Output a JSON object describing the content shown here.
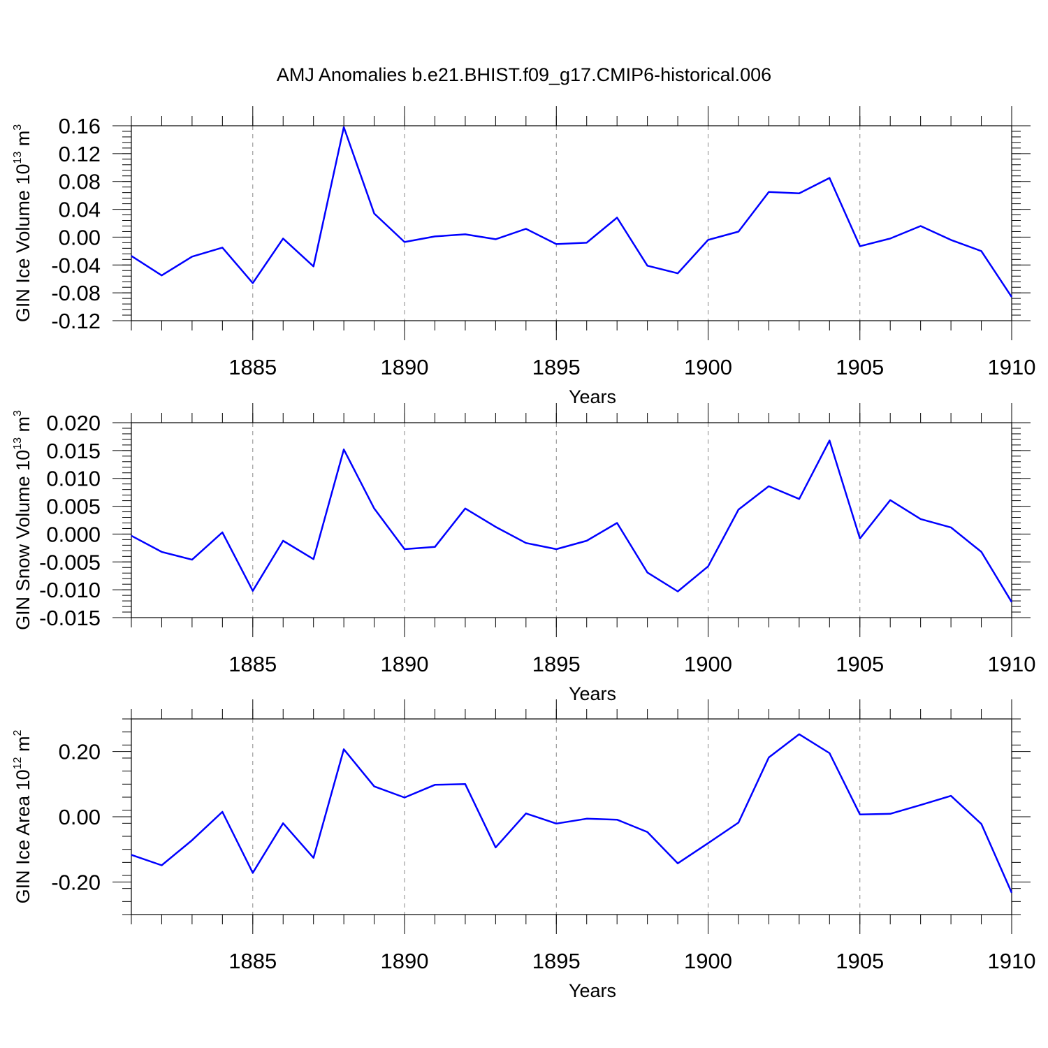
{
  "figure": {
    "title": "AMJ Anomalies b.e21.BHIST.f09_g17.CMIP6-historical.006"
  },
  "chart_data": [
    {
      "type": "line",
      "xlabel": "Years",
      "ylabel": {
        "text": "GIN Ice Volume 10",
        "exp": "13",
        "unit": " m",
        "unit_exp": "3"
      },
      "xlim": [
        1881,
        1910
      ],
      "ylim": [
        -0.12,
        0.16
      ],
      "xticks": [
        1885,
        1890,
        1895,
        1900,
        1905,
        1910
      ],
      "yticks": [
        -0.12,
        -0.08,
        -0.04,
        0.0,
        0.04,
        0.08,
        0.12,
        0.16
      ],
      "yticklabels": [
        "-0.12",
        "-0.08",
        "-0.04",
        "0.00",
        "0.04",
        "0.08",
        "0.12",
        "0.16"
      ],
      "series": [
        {
          "color": "#0000ff",
          "x": [
            1881,
            1882,
            1883,
            1884,
            1885,
            1886,
            1887,
            1888,
            1889,
            1890,
            1891,
            1892,
            1893,
            1894,
            1895,
            1896,
            1897,
            1898,
            1899,
            1900,
            1901,
            1902,
            1903,
            1904,
            1905,
            1906,
            1907,
            1908,
            1909,
            1910
          ],
          "y": [
            -0.027,
            -0.055,
            -0.028,
            -0.015,
            -0.066,
            -0.002,
            -0.042,
            0.158,
            0.034,
            -0.007,
            0.001,
            0.004,
            -0.003,
            0.012,
            -0.01,
            -0.008,
            0.028,
            -0.041,
            -0.052,
            -0.004,
            0.008,
            0.065,
            0.063,
            0.085,
            -0.013,
            -0.002,
            0.016,
            -0.004,
            -0.02,
            -0.086
          ]
        }
      ]
    },
    {
      "type": "line",
      "xlabel": "Years",
      "ylabel": {
        "text": "GIN Snow Volume 10",
        "exp": "13",
        "unit": " m",
        "unit_exp": "3"
      },
      "xlim": [
        1881,
        1910
      ],
      "ylim": [
        -0.015,
        0.02
      ],
      "xticks": [
        1885,
        1890,
        1895,
        1900,
        1905,
        1910
      ],
      "yticks": [
        -0.015,
        -0.01,
        -0.005,
        0.0,
        0.005,
        0.01,
        0.015,
        0.02
      ],
      "yticklabels": [
        "-0.015",
        "-0.010",
        "-0.005",
        "0.000",
        "0.005",
        "0.010",
        "0.015",
        "0.020"
      ],
      "series": [
        {
          "color": "#0000ff",
          "x": [
            1881,
            1882,
            1883,
            1884,
            1885,
            1886,
            1887,
            1888,
            1889,
            1890,
            1891,
            1892,
            1893,
            1894,
            1895,
            1896,
            1897,
            1898,
            1899,
            1900,
            1901,
            1902,
            1903,
            1904,
            1905,
            1906,
            1907,
            1908,
            1909,
            1910
          ],
          "y": [
            -0.0003,
            -0.0032,
            -0.0046,
            0.0003,
            -0.0102,
            -0.0012,
            -0.0045,
            0.0152,
            0.0046,
            -0.0027,
            -0.0023,
            0.0046,
            0.0013,
            -0.0016,
            -0.0027,
            -0.0012,
            0.002,
            -0.0069,
            -0.0103,
            -0.0058,
            0.0044,
            0.0086,
            0.0063,
            0.0168,
            -0.0008,
            0.0061,
            0.0027,
            0.0012,
            -0.0032,
            -0.0122
          ]
        }
      ]
    },
    {
      "type": "line",
      "xlabel": "Years",
      "ylabel": {
        "text": "GIN Ice Area 10",
        "exp": "12",
        "unit": " m",
        "unit_exp": "2"
      },
      "xlim": [
        1881,
        1910
      ],
      "ylim": [
        -0.3,
        0.3
      ],
      "xticks": [
        1885,
        1890,
        1895,
        1900,
        1905,
        1910
      ],
      "yticks": [
        -0.2,
        0.0,
        0.2
      ],
      "yticklabels": [
        "-0.20",
        "0.00",
        "0.20"
      ],
      "series": [
        {
          "color": "#0000ff",
          "x": [
            1881,
            1882,
            1883,
            1884,
            1885,
            1886,
            1887,
            1888,
            1889,
            1890,
            1891,
            1892,
            1893,
            1894,
            1895,
            1896,
            1897,
            1898,
            1899,
            1900,
            1901,
            1902,
            1903,
            1904,
            1905,
            1906,
            1907,
            1908,
            1909,
            1910
          ],
          "y": [
            -0.117,
            -0.149,
            -0.072,
            0.015,
            -0.172,
            -0.02,
            -0.126,
            0.207,
            0.093,
            0.059,
            0.098,
            0.1,
            -0.094,
            0.01,
            -0.021,
            -0.006,
            -0.009,
            -0.047,
            -0.143,
            -0.081,
            -0.018,
            0.182,
            0.253,
            0.195,
            0.007,
            0.009,
            0.036,
            0.064,
            -0.022,
            -0.233
          ]
        }
      ]
    }
  ]
}
